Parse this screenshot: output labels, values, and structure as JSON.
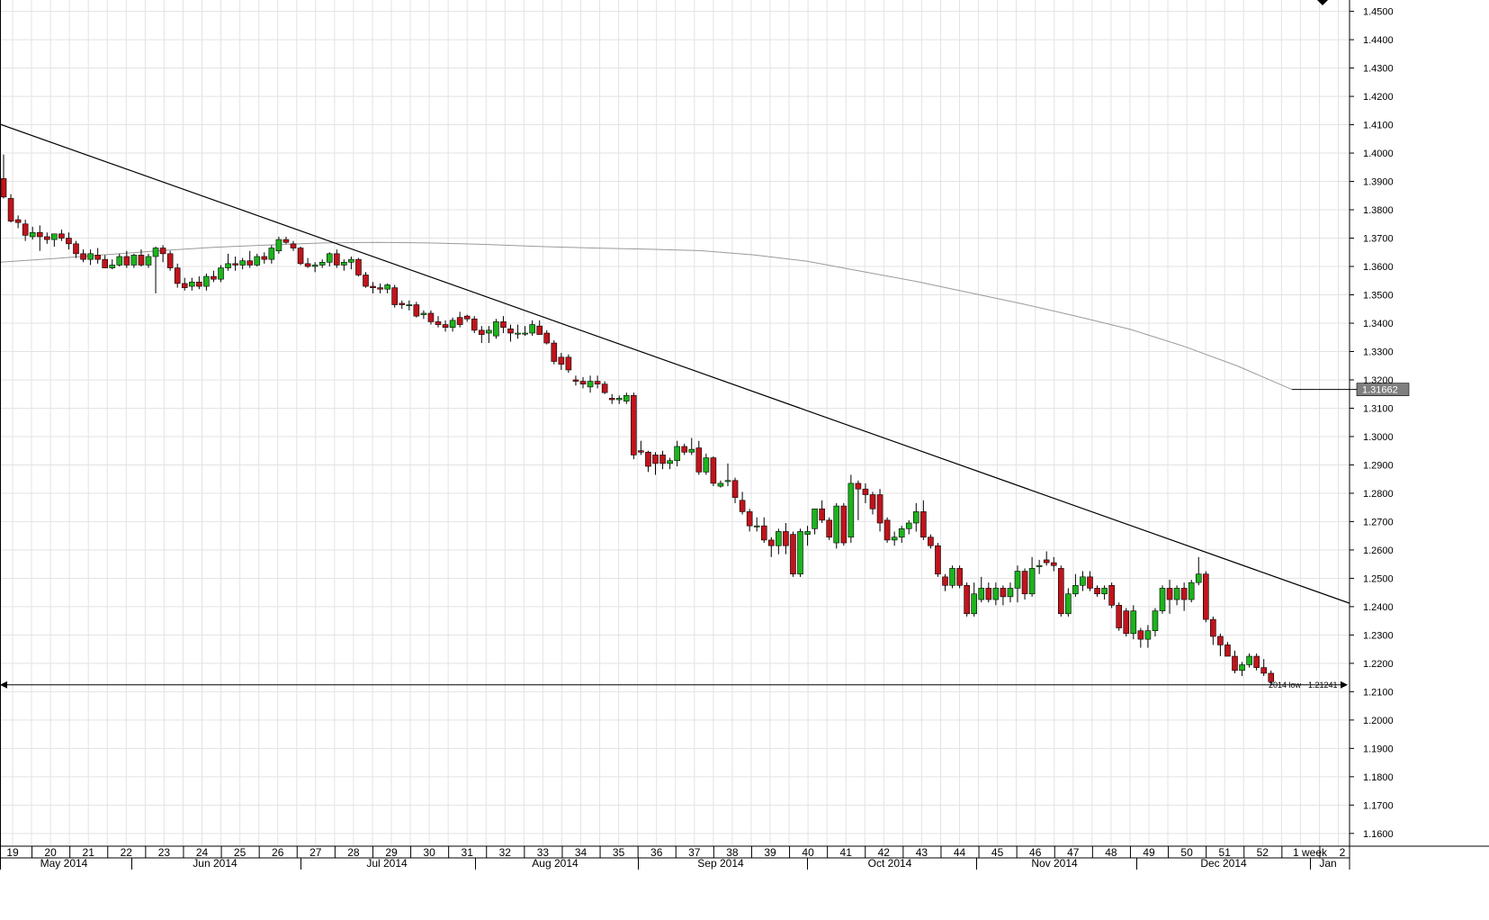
{
  "chart_data": {
    "type": "candlestick",
    "title": "",
    "xlabel": "",
    "ylabel": "",
    "ylim": [
      1.1555,
      1.454
    ],
    "grid": true,
    "colors": {
      "up": "#1db31d",
      "down": "#c0141c",
      "wick": "#000000",
      "grid": "#e3e3e3",
      "trendline": "#000000",
      "moving_average": "#9a9a9a",
      "badge_bg": "#7f7f7f",
      "badge_text": "#ffffff"
    },
    "y_ticks": [
      "1.4500",
      "1.4400",
      "1.4300",
      "1.4200",
      "1.4100",
      "1.4000",
      "1.3900",
      "1.3800",
      "1.3700",
      "1.3600",
      "1.3500",
      "1.3400",
      "1.3300",
      "1.3200",
      "1.3100",
      "1.3000",
      "1.2900",
      "1.2800",
      "1.2700",
      "1.2600",
      "1.2500",
      "1.2400",
      "1.2300",
      "1.2200",
      "1.2100",
      "1.2000",
      "1.1900",
      "1.1800",
      "1.1700",
      "1.1600"
    ],
    "week_labels": [
      "19",
      "20",
      "21",
      "22",
      "23",
      "24",
      "25",
      "26",
      "27",
      "28",
      "29",
      "30",
      "31",
      "32",
      "33",
      "34",
      "35",
      "36",
      "37",
      "38",
      "39",
      "40",
      "41",
      "42",
      "43",
      "44",
      "45",
      "46",
      "47",
      "48",
      "49",
      "50",
      "51",
      "52",
      "1 week",
      "2"
    ],
    "month_labels": [
      "May 2014",
      "Jun 2014",
      "Jul 2014",
      "Aug 2014",
      "Sep 2014",
      "Oct 2014",
      "Nov 2014",
      "Dec 2014",
      "Jan"
    ],
    "current_value_label": "1.31662",
    "current_value": 1.31662,
    "low_line": {
      "value": 1.21241,
      "label": "1.21241",
      "tag": "2014 low"
    },
    "trendline": {
      "start": {
        "week": "19",
        "value": 1.4102
      },
      "end": {
        "week": "1 week",
        "value": 1.2412
      }
    },
    "moving_average": [
      1.3615,
      1.3628,
      1.3642,
      1.3656,
      1.3668,
      1.3676,
      1.3683,
      1.3685,
      1.3683,
      1.3678,
      1.3671,
      1.3665,
      1.3661,
      1.3656,
      1.3641,
      1.3618,
      1.3583,
      1.3548,
      1.3508,
      1.3468,
      1.3424,
      1.3378,
      1.3318,
      1.3248,
      1.3166
    ],
    "series": [
      {
        "o": 1.391,
        "h": 1.3995,
        "l": 1.384,
        "c": 1.3845
      },
      {
        "o": 1.384,
        "h": 1.3855,
        "l": 1.3755,
        "c": 1.376
      },
      {
        "o": 1.3765,
        "h": 1.378,
        "l": 1.3735,
        "c": 1.3755
      },
      {
        "o": 1.375,
        "h": 1.3765,
        "l": 1.369,
        "c": 1.371
      },
      {
        "o": 1.3705,
        "h": 1.374,
        "l": 1.3695,
        "c": 1.372
      },
      {
        "o": 1.372,
        "h": 1.3745,
        "l": 1.3655,
        "c": 1.3705
      },
      {
        "o": 1.3705,
        "h": 1.372,
        "l": 1.368,
        "c": 1.3695
      },
      {
        "o": 1.3695,
        "h": 1.3715,
        "l": 1.367,
        "c": 1.3715
      },
      {
        "o": 1.3715,
        "h": 1.373,
        "l": 1.369,
        "c": 1.37
      },
      {
        "o": 1.37,
        "h": 1.372,
        "l": 1.366,
        "c": 1.368
      },
      {
        "o": 1.368,
        "h": 1.369,
        "l": 1.363,
        "c": 1.3645
      },
      {
        "o": 1.3645,
        "h": 1.366,
        "l": 1.3615,
        "c": 1.3625
      },
      {
        "o": 1.3625,
        "h": 1.366,
        "l": 1.3605,
        "c": 1.3645
      },
      {
        "o": 1.364,
        "h": 1.3665,
        "l": 1.361,
        "c": 1.3625
      },
      {
        "o": 1.3625,
        "h": 1.364,
        "l": 1.3595,
        "c": 1.3595
      },
      {
        "o": 1.3595,
        "h": 1.3625,
        "l": 1.359,
        "c": 1.3605
      },
      {
        "o": 1.3605,
        "h": 1.3645,
        "l": 1.36,
        "c": 1.3635
      },
      {
        "o": 1.3635,
        "h": 1.3655,
        "l": 1.3595,
        "c": 1.3605
      },
      {
        "o": 1.3605,
        "h": 1.3645,
        "l": 1.3595,
        "c": 1.364
      },
      {
        "o": 1.364,
        "h": 1.366,
        "l": 1.36,
        "c": 1.3605
      },
      {
        "o": 1.3605,
        "h": 1.3645,
        "l": 1.3595,
        "c": 1.3635
      },
      {
        "o": 1.3635,
        "h": 1.367,
        "l": 1.3505,
        "c": 1.3665
      },
      {
        "o": 1.3665,
        "h": 1.3675,
        "l": 1.3615,
        "c": 1.3645
      },
      {
        "o": 1.3645,
        "h": 1.3655,
        "l": 1.3585,
        "c": 1.3595
      },
      {
        "o": 1.3595,
        "h": 1.361,
        "l": 1.3525,
        "c": 1.354
      },
      {
        "o": 1.354,
        "h": 1.356,
        "l": 1.3515,
        "c": 1.3525
      },
      {
        "o": 1.353,
        "h": 1.356,
        "l": 1.3515,
        "c": 1.3545
      },
      {
        "o": 1.3545,
        "h": 1.3565,
        "l": 1.352,
        "c": 1.353
      },
      {
        "o": 1.353,
        "h": 1.3575,
        "l": 1.3515,
        "c": 1.3565
      },
      {
        "o": 1.3565,
        "h": 1.3585,
        "l": 1.3545,
        "c": 1.3555
      },
      {
        "o": 1.3555,
        "h": 1.3605,
        "l": 1.3545,
        "c": 1.3595
      },
      {
        "o": 1.3595,
        "h": 1.3645,
        "l": 1.3585,
        "c": 1.361
      },
      {
        "o": 1.361,
        "h": 1.3635,
        "l": 1.3585,
        "c": 1.3605
      },
      {
        "o": 1.3605,
        "h": 1.363,
        "l": 1.359,
        "c": 1.362
      },
      {
        "o": 1.362,
        "h": 1.3655,
        "l": 1.3595,
        "c": 1.3605
      },
      {
        "o": 1.3605,
        "h": 1.3645,
        "l": 1.36,
        "c": 1.3635
      },
      {
        "o": 1.3635,
        "h": 1.365,
        "l": 1.361,
        "c": 1.3625
      },
      {
        "o": 1.3625,
        "h": 1.3675,
        "l": 1.361,
        "c": 1.3665
      },
      {
        "o": 1.3655,
        "h": 1.3705,
        "l": 1.3645,
        "c": 1.3695
      },
      {
        "o": 1.3695,
        "h": 1.3705,
        "l": 1.368,
        "c": 1.3685
      },
      {
        "o": 1.368,
        "h": 1.369,
        "l": 1.3655,
        "c": 1.3665
      },
      {
        "o": 1.3665,
        "h": 1.367,
        "l": 1.3605,
        "c": 1.361
      },
      {
        "o": 1.361,
        "h": 1.363,
        "l": 1.3595,
        "c": 1.36
      },
      {
        "o": 1.36,
        "h": 1.3615,
        "l": 1.358,
        "c": 1.3605
      },
      {
        "o": 1.3605,
        "h": 1.3625,
        "l": 1.3595,
        "c": 1.3615
      },
      {
        "o": 1.3615,
        "h": 1.365,
        "l": 1.36,
        "c": 1.3645
      },
      {
        "o": 1.3645,
        "h": 1.366,
        "l": 1.3595,
        "c": 1.3605
      },
      {
        "o": 1.3605,
        "h": 1.3625,
        "l": 1.3585,
        "c": 1.3615
      },
      {
        "o": 1.3615,
        "h": 1.3635,
        "l": 1.359,
        "c": 1.3625
      },
      {
        "o": 1.3625,
        "h": 1.363,
        "l": 1.3565,
        "c": 1.357
      },
      {
        "o": 1.357,
        "h": 1.358,
        "l": 1.3525,
        "c": 1.353
      },
      {
        "o": 1.353,
        "h": 1.3545,
        "l": 1.3505,
        "c": 1.3525
      },
      {
        "o": 1.3525,
        "h": 1.354,
        "l": 1.3505,
        "c": 1.352
      },
      {
        "o": 1.352,
        "h": 1.354,
        "l": 1.3505,
        "c": 1.3535
      },
      {
        "o": 1.3525,
        "h": 1.3535,
        "l": 1.3455,
        "c": 1.3465
      },
      {
        "o": 1.347,
        "h": 1.348,
        "l": 1.345,
        "c": 1.3465
      },
      {
        "o": 1.3465,
        "h": 1.348,
        "l": 1.3445,
        "c": 1.3465
      },
      {
        "o": 1.3465,
        "h": 1.3475,
        "l": 1.342,
        "c": 1.3425
      },
      {
        "o": 1.343,
        "h": 1.3445,
        "l": 1.3415,
        "c": 1.3435
      },
      {
        "o": 1.3435,
        "h": 1.3445,
        "l": 1.3395,
        "c": 1.3405
      },
      {
        "o": 1.3405,
        "h": 1.3425,
        "l": 1.3385,
        "c": 1.3395
      },
      {
        "o": 1.3395,
        "h": 1.341,
        "l": 1.337,
        "c": 1.3385
      },
      {
        "o": 1.3385,
        "h": 1.342,
        "l": 1.337,
        "c": 1.341
      },
      {
        "o": 1.342,
        "h": 1.344,
        "l": 1.3385,
        "c": 1.3395
      },
      {
        "o": 1.3425,
        "h": 1.343,
        "l": 1.3405,
        "c": 1.3415
      },
      {
        "o": 1.3415,
        "h": 1.3425,
        "l": 1.3365,
        "c": 1.3375
      },
      {
        "o": 1.3375,
        "h": 1.339,
        "l": 1.333,
        "c": 1.336
      },
      {
        "o": 1.3365,
        "h": 1.339,
        "l": 1.333,
        "c": 1.3375
      },
      {
        "o": 1.3355,
        "h": 1.3415,
        "l": 1.3345,
        "c": 1.3405
      },
      {
        "o": 1.3405,
        "h": 1.3425,
        "l": 1.3365,
        "c": 1.3385
      },
      {
        "o": 1.338,
        "h": 1.3395,
        "l": 1.3335,
        "c": 1.3365
      },
      {
        "o": 1.3365,
        "h": 1.3395,
        "l": 1.3345,
        "c": 1.3365
      },
      {
        "o": 1.3365,
        "h": 1.339,
        "l": 1.3355,
        "c": 1.3365
      },
      {
        "o": 1.3365,
        "h": 1.341,
        "l": 1.3355,
        "c": 1.3395
      },
      {
        "o": 1.339,
        "h": 1.341,
        "l": 1.3365,
        "c": 1.336
      },
      {
        "o": 1.3365,
        "h": 1.3375,
        "l": 1.3325,
        "c": 1.333
      },
      {
        "o": 1.333,
        "h": 1.334,
        "l": 1.3255,
        "c": 1.3265
      },
      {
        "o": 1.328,
        "h": 1.3295,
        "l": 1.3235,
        "c": 1.3255
      },
      {
        "o": 1.328,
        "h": 1.329,
        "l": 1.3225,
        "c": 1.3235
      },
      {
        "o": 1.32,
        "h": 1.3215,
        "l": 1.318,
        "c": 1.3195
      },
      {
        "o": 1.3195,
        "h": 1.321,
        "l": 1.317,
        "c": 1.3185
      },
      {
        "o": 1.3175,
        "h": 1.3215,
        "l": 1.3155,
        "c": 1.3195
      },
      {
        "o": 1.3195,
        "h": 1.3215,
        "l": 1.317,
        "c": 1.3185
      },
      {
        "o": 1.3185,
        "h": 1.3195,
        "l": 1.315,
        "c": 1.3155
      },
      {
        "o": 1.3135,
        "h": 1.315,
        "l": 1.3115,
        "c": 1.313
      },
      {
        "o": 1.313,
        "h": 1.3145,
        "l": 1.3115,
        "c": 1.3135
      },
      {
        "o": 1.3125,
        "h": 1.3155,
        "l": 1.3115,
        "c": 1.3145
      },
      {
        "o": 1.3145,
        "h": 1.3155,
        "l": 1.292,
        "c": 1.2935
      },
      {
        "o": 1.295,
        "h": 1.2985,
        "l": 1.2935,
        "c": 1.2945
      },
      {
        "o": 1.2945,
        "h": 1.295,
        "l": 1.2875,
        "c": 1.2895
      },
      {
        "o": 1.2935,
        "h": 1.2945,
        "l": 1.2865,
        "c": 1.2905
      },
      {
        "o": 1.2935,
        "h": 1.295,
        "l": 1.2885,
        "c": 1.2905
      },
      {
        "o": 1.2905,
        "h": 1.2925,
        "l": 1.2885,
        "c": 1.2915
      },
      {
        "o": 1.2915,
        "h": 1.2985,
        "l": 1.2895,
        "c": 1.2965
      },
      {
        "o": 1.2965,
        "h": 1.2975,
        "l": 1.2935,
        "c": 1.2945
      },
      {
        "o": 1.2945,
        "h": 1.2995,
        "l": 1.2935,
        "c": 1.2955
      },
      {
        "o": 1.296,
        "h": 1.2985,
        "l": 1.2865,
        "c": 1.2875
      },
      {
        "o": 1.2875,
        "h": 1.294,
        "l": 1.2865,
        "c": 1.2925
      },
      {
        "o": 1.2925,
        "h": 1.293,
        "l": 1.2825,
        "c": 1.2835
      },
      {
        "o": 1.2825,
        "h": 1.2845,
        "l": 1.282,
        "c": 1.2835
      },
      {
        "o": 1.2845,
        "h": 1.2905,
        "l": 1.2825,
        "c": 1.2845
      },
      {
        "o": 1.2845,
        "h": 1.2855,
        "l": 1.2765,
        "c": 1.2785
      },
      {
        "o": 1.2775,
        "h": 1.2805,
        "l": 1.2725,
        "c": 1.2735
      },
      {
        "o": 1.2735,
        "h": 1.2745,
        "l": 1.2665,
        "c": 1.2685
      },
      {
        "o": 1.2685,
        "h": 1.2715,
        "l": 1.2665,
        "c": 1.2685
      },
      {
        "o": 1.2685,
        "h": 1.2715,
        "l": 1.2625,
        "c": 1.2635
      },
      {
        "o": 1.2635,
        "h": 1.2645,
        "l": 1.2575,
        "c": 1.2615
      },
      {
        "o": 1.2615,
        "h": 1.2675,
        "l": 1.2585,
        "c": 1.2665
      },
      {
        "o": 1.2665,
        "h": 1.2695,
        "l": 1.2585,
        "c": 1.2615
      },
      {
        "o": 1.2655,
        "h": 1.2665,
        "l": 1.2505,
        "c": 1.2515
      },
      {
        "o": 1.2515,
        "h": 1.2675,
        "l": 1.2505,
        "c": 1.2665
      },
      {
        "o": 1.2655,
        "h": 1.2685,
        "l": 1.2615,
        "c": 1.2665
      },
      {
        "o": 1.2675,
        "h": 1.2745,
        "l": 1.2655,
        "c": 1.2745
      },
      {
        "o": 1.2745,
        "h": 1.2775,
        "l": 1.2695,
        "c": 1.2705
      },
      {
        "o": 1.2705,
        "h": 1.2715,
        "l": 1.2635,
        "c": 1.2645
      },
      {
        "o": 1.2625,
        "h": 1.2765,
        "l": 1.2605,
        "c": 1.2755
      },
      {
        "o": 1.2755,
        "h": 1.2765,
        "l": 1.2615,
        "c": 1.2625
      },
      {
        "o": 1.2645,
        "h": 1.2865,
        "l": 1.2625,
        "c": 1.2835
      },
      {
        "o": 1.2835,
        "h": 1.2845,
        "l": 1.2705,
        "c": 1.2815
      },
      {
        "o": 1.2815,
        "h": 1.2835,
        "l": 1.2765,
        "c": 1.2795
      },
      {
        "o": 1.2795,
        "h": 1.2805,
        "l": 1.2725,
        "c": 1.2745
      },
      {
        "o": 1.2795,
        "h": 1.2815,
        "l": 1.2665,
        "c": 1.2695
      },
      {
        "o": 1.2705,
        "h": 1.2715,
        "l": 1.2625,
        "c": 1.2635
      },
      {
        "o": 1.2635,
        "h": 1.2665,
        "l": 1.2615,
        "c": 1.2645
      },
      {
        "o": 1.2645,
        "h": 1.2685,
        "l": 1.2625,
        "c": 1.2675
      },
      {
        "o": 1.2675,
        "h": 1.2705,
        "l": 1.2655,
        "c": 1.2695
      },
      {
        "o": 1.2695,
        "h": 1.2765,
        "l": 1.2665,
        "c": 1.2735
      },
      {
        "o": 1.2735,
        "h": 1.2775,
        "l": 1.2635,
        "c": 1.2645
      },
      {
        "o": 1.2645,
        "h": 1.2655,
        "l": 1.2605,
        "c": 1.2615
      },
      {
        "o": 1.2615,
        "h": 1.2625,
        "l": 1.2505,
        "c": 1.2515
      },
      {
        "o": 1.2505,
        "h": 1.2515,
        "l": 1.2455,
        "c": 1.2475
      },
      {
        "o": 1.2475,
        "h": 1.2545,
        "l": 1.2465,
        "c": 1.2535
      },
      {
        "o": 1.2535,
        "h": 1.2545,
        "l": 1.2465,
        "c": 1.2475
      },
      {
        "o": 1.2475,
        "h": 1.2485,
        "l": 1.2365,
        "c": 1.2375
      },
      {
        "o": 1.2375,
        "h": 1.2485,
        "l": 1.2365,
        "c": 1.2445
      },
      {
        "o": 1.2425,
        "h": 1.2505,
        "l": 1.2415,
        "c": 1.2465
      },
      {
        "o": 1.2465,
        "h": 1.2485,
        "l": 1.2415,
        "c": 1.2425
      },
      {
        "o": 1.2425,
        "h": 1.2485,
        "l": 1.2405,
        "c": 1.2465
      },
      {
        "o": 1.2465,
        "h": 1.2475,
        "l": 1.2405,
        "c": 1.2435
      },
      {
        "o": 1.2435,
        "h": 1.2485,
        "l": 1.2415,
        "c": 1.2465
      },
      {
        "o": 1.2465,
        "h": 1.2545,
        "l": 1.2415,
        "c": 1.2525
      },
      {
        "o": 1.2525,
        "h": 1.2535,
        "l": 1.2425,
        "c": 1.2445
      },
      {
        "o": 1.2445,
        "h": 1.2575,
        "l": 1.2435,
        "c": 1.2535
      },
      {
        "o": 1.2545,
        "h": 1.2565,
        "l": 1.2515,
        "c": 1.2545
      },
      {
        "o": 1.2565,
        "h": 1.2595,
        "l": 1.2545,
        "c": 1.2555
      },
      {
        "o": 1.2555,
        "h": 1.2575,
        "l": 1.2525,
        "c": 1.2545
      },
      {
        "o": 1.2535,
        "h": 1.2545,
        "l": 1.2365,
        "c": 1.2375
      },
      {
        "o": 1.2375,
        "h": 1.2465,
        "l": 1.2365,
        "c": 1.2445
      },
      {
        "o": 1.2445,
        "h": 1.2515,
        "l": 1.2435,
        "c": 1.2475
      },
      {
        "o": 1.2475,
        "h": 1.2525,
        "l": 1.2455,
        "c": 1.2505
      },
      {
        "o": 1.2505,
        "h": 1.2525,
        "l": 1.2455,
        "c": 1.2465
      },
      {
        "o": 1.2465,
        "h": 1.2475,
        "l": 1.2435,
        "c": 1.2445
      },
      {
        "o": 1.2445,
        "h": 1.2475,
        "l": 1.2425,
        "c": 1.2465
      },
      {
        "o": 1.2475,
        "h": 1.2485,
        "l": 1.2395,
        "c": 1.2405
      },
      {
        "o": 1.2405,
        "h": 1.2415,
        "l": 1.2315,
        "c": 1.2325
      },
      {
        "o": 1.2385,
        "h": 1.2395,
        "l": 1.2295,
        "c": 1.2305
      },
      {
        "o": 1.2305,
        "h": 1.2405,
        "l": 1.2285,
        "c": 1.2385
      },
      {
        "o": 1.2315,
        "h": 1.2325,
        "l": 1.2255,
        "c": 1.2285
      },
      {
        "o": 1.2285,
        "h": 1.2335,
        "l": 1.2255,
        "c": 1.2315
      },
      {
        "o": 1.2315,
        "h": 1.2395,
        "l": 1.2295,
        "c": 1.2385
      },
      {
        "o": 1.2385,
        "h": 1.2475,
        "l": 1.2375,
        "c": 1.2465
      },
      {
        "o": 1.2465,
        "h": 1.2495,
        "l": 1.2375,
        "c": 1.2425
      },
      {
        "o": 1.2425,
        "h": 1.2475,
        "l": 1.2405,
        "c": 1.2465
      },
      {
        "o": 1.2465,
        "h": 1.2485,
        "l": 1.2385,
        "c": 1.2425
      },
      {
        "o": 1.2425,
        "h": 1.2495,
        "l": 1.2415,
        "c": 1.2485
      },
      {
        "o": 1.2485,
        "h": 1.2575,
        "l": 1.2475,
        "c": 1.2515
      },
      {
        "o": 1.2515,
        "h": 1.2525,
        "l": 1.2345,
        "c": 1.2355
      },
      {
        "o": 1.2355,
        "h": 1.2365,
        "l": 1.2265,
        "c": 1.2295
      },
      {
        "o": 1.2295,
        "h": 1.2305,
        "l": 1.2225,
        "c": 1.2265
      },
      {
        "o": 1.2265,
        "h": 1.2275,
        "l": 1.2225,
        "c": 1.2225
      },
      {
        "o": 1.2225,
        "h": 1.2245,
        "l": 1.2165,
        "c": 1.2175
      },
      {
        "o": 1.2175,
        "h": 1.2205,
        "l": 1.2155,
        "c": 1.2195
      },
      {
        "o": 1.2195,
        "h": 1.2235,
        "l": 1.2185,
        "c": 1.2225
      },
      {
        "o": 1.2225,
        "h": 1.2235,
        "l": 1.2175,
        "c": 1.2185
      },
      {
        "o": 1.2185,
        "h": 1.2215,
        "l": 1.2155,
        "c": 1.2165
      },
      {
        "o": 1.2165,
        "h": 1.2175,
        "l": 1.2124,
        "c": 1.2135
      }
    ]
  }
}
